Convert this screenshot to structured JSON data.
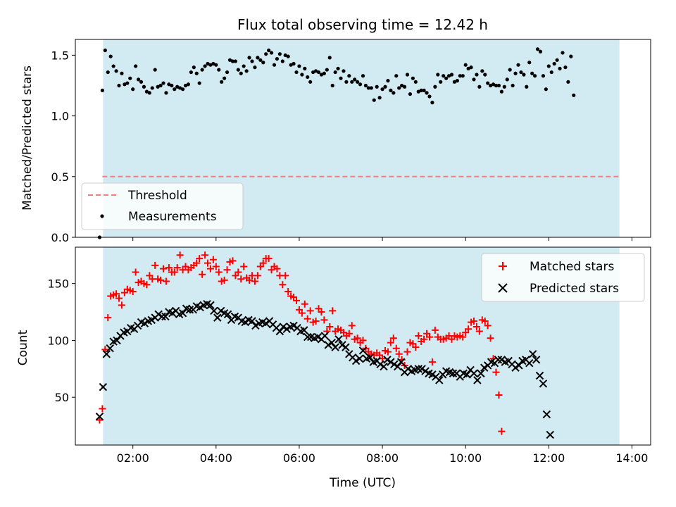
{
  "chart_data": [
    {
      "type": "scatter",
      "title": "Flux total observing time = 12.42 h",
      "xlabel": "",
      "ylabel": "Matched/Predicted stars",
      "xlim": [
        "00:37",
        "14:27"
      ],
      "ylim": [
        0,
        1.63
      ],
      "yticks": [
        0.0,
        0.5,
        1.0,
        1.5
      ],
      "ytick_labels": [
        "0.0",
        "0.5",
        "1.0",
        "1.5"
      ],
      "grid": false,
      "legend_position": "lower-left",
      "observing_window": [
        "01:17",
        "13:42"
      ],
      "threshold": {
        "name": "Threshold",
        "value": 0.5,
        "x_range": [
          "01:16",
          "13:42"
        ],
        "color": "#f08080",
        "style": "dashed"
      },
      "series": [
        {
          "name": "Measurements",
          "marker": "dot",
          "color": "#000000",
          "x_start": "01:12",
          "x_step_minutes": 4,
          "values": [
            0.0,
            1.21,
            1.54,
            1.36,
            1.49,
            1.41,
            1.37,
            1.25,
            1.35,
            1.26,
            1.27,
            1.31,
            1.22,
            1.41,
            1.3,
            1.28,
            1.24,
            1.2,
            1.19,
            1.23,
            1.38,
            1.24,
            1.25,
            1.27,
            1.19,
            1.26,
            1.25,
            1.22,
            1.24,
            1.23,
            1.22,
            1.25,
            1.26,
            1.36,
            1.4,
            1.35,
            1.27,
            1.38,
            1.41,
            1.43,
            1.42,
            1.43,
            1.42,
            1.38,
            1.28,
            1.31,
            1.36,
            1.46,
            1.45,
            1.45,
            1.38,
            1.35,
            1.41,
            1.37,
            1.48,
            1.45,
            1.4,
            1.48,
            1.46,
            1.44,
            1.51,
            1.54,
            1.52,
            1.42,
            1.47,
            1.51,
            1.45,
            1.5,
            1.49,
            1.42,
            1.43,
            1.36,
            1.41,
            1.34,
            1.39,
            1.32,
            1.28,
            1.36,
            1.37,
            1.36,
            1.34,
            1.35,
            1.38,
            1.48,
            1.25,
            1.36,
            1.39,
            1.31,
            1.37,
            1.28,
            1.33,
            1.28,
            1.3,
            1.28,
            1.26,
            1.33,
            1.25,
            1.23,
            1.23,
            1.13,
            1.24,
            1.15,
            1.22,
            1.24,
            1.29,
            1.21,
            1.19,
            1.33,
            1.23,
            1.25,
            1.24,
            1.34,
            1.18,
            1.31,
            1.28,
            1.2,
            1.21,
            1.21,
            1.19,
            1.16,
            1.11,
            1.24,
            1.34,
            1.28,
            1.33,
            1.31,
            1.33,
            1.34,
            1.28,
            1.29,
            1.33,
            1.33,
            1.42,
            1.39,
            1.4,
            1.3,
            1.34,
            1.24,
            1.37,
            1.34,
            1.27,
            1.25,
            1.26,
            1.25,
            1.25,
            1.2,
            1.24,
            1.3,
            1.38,
            1.25,
            1.35,
            1.42,
            1.36,
            1.34,
            1.24,
            1.44,
            1.35,
            1.33,
            1.55,
            1.53,
            1.33,
            1.22,
            1.41,
            1.36,
            1.43,
            1.46,
            1.39,
            1.52,
            1.4,
            1.28,
            1.49,
            1.17
          ]
        }
      ]
    },
    {
      "type": "scatter",
      "title": "",
      "xlabel": "Time (UTC)",
      "ylabel": "Count",
      "xlim": [
        "00:37",
        "14:27"
      ],
      "ylim": [
        8,
        182
      ],
      "yticks": [
        50,
        100,
        150
      ],
      "ytick_labels": [
        "50",
        "100",
        "150"
      ],
      "xticks": [
        "02:00",
        "04:00",
        "06:00",
        "08:00",
        "10:00",
        "12:00",
        "14:00"
      ],
      "grid": false,
      "legend_position": "upper-right",
      "observing_window": [
        "01:17",
        "13:42"
      ],
      "series": [
        {
          "name": "Matched stars",
          "marker": "plus",
          "color": "#ff0000",
          "x_start": "01:12",
          "x_step_minutes": 4,
          "values": [
            30,
            40,
            92,
            120,
            139,
            140,
            141,
            137,
            131,
            142,
            145,
            144,
            143,
            160,
            151,
            152,
            150,
            149,
            157,
            154,
            166,
            154,
            153,
            163,
            152,
            164,
            160,
            160,
            164,
            175,
            162,
            165,
            162,
            164,
            166,
            168,
            172,
            158,
            175,
            168,
            163,
            171,
            165,
            160,
            152,
            153,
            162,
            169,
            170,
            157,
            160,
            154,
            165,
            155,
            153,
            157,
            152,
            157,
            165,
            168,
            172,
            172,
            162,
            165,
            163,
            157,
            149,
            157,
            143,
            139,
            138,
            135,
            127,
            124,
            132,
            119,
            126,
            116,
            117,
            128,
            125,
            118,
            108,
            112,
            126,
            108,
            110,
            109,
            107,
            104,
            106,
            113,
            101,
            102,
            98,
            100,
            93,
            90,
            88,
            87,
            89,
            87,
            84,
            91,
            90,
            98,
            102,
            93,
            88,
            83,
            78,
            90,
            98,
            97,
            94,
            104,
            99,
            101,
            106,
            103,
            81,
            109,
            103,
            101,
            101,
            102,
            104,
            101,
            104,
            103,
            104,
            103,
            107,
            110,
            116,
            117,
            112,
            108,
            118,
            117,
            113,
            102,
            84,
            72,
            52,
            20
          ]
        },
        {
          "name": "Predicted stars",
          "marker": "x",
          "color": "#000000",
          "x_start": "01:12",
          "x_step_minutes": 5,
          "values": [
            33,
            59,
            88,
            93,
            99,
            100,
            104,
            107,
            108,
            111,
            110,
            113,
            116,
            115,
            117,
            118,
            120,
            123,
            121,
            121,
            125,
            124,
            126,
            123,
            124,
            128,
            127,
            127,
            130,
            129,
            131,
            132,
            131,
            126,
            120,
            126,
            124,
            123,
            118,
            121,
            120,
            117,
            116,
            118,
            117,
            113,
            115,
            116,
            115,
            117,
            114,
            111,
            108,
            112,
            110,
            112,
            113,
            111,
            108,
            109,
            103,
            103,
            102,
            103,
            101,
            104,
            96,
            98,
            94,
            101,
            96,
            94,
            88,
            85,
            82,
            84,
            91,
            84,
            85,
            81,
            82,
            79,
            77,
            83,
            81,
            79,
            77,
            81,
            72,
            75,
            73,
            74,
            75,
            75,
            73,
            71,
            70,
            68,
            65,
            70,
            73,
            72,
            71,
            71,
            68,
            71,
            70,
            74,
            71,
            65,
            71,
            76,
            78,
            81,
            80,
            83,
            83,
            81,
            82,
            79,
            76,
            78,
            82,
            83,
            80,
            88,
            83,
            69,
            62,
            35,
            17
          ]
        }
      ]
    }
  ]
}
